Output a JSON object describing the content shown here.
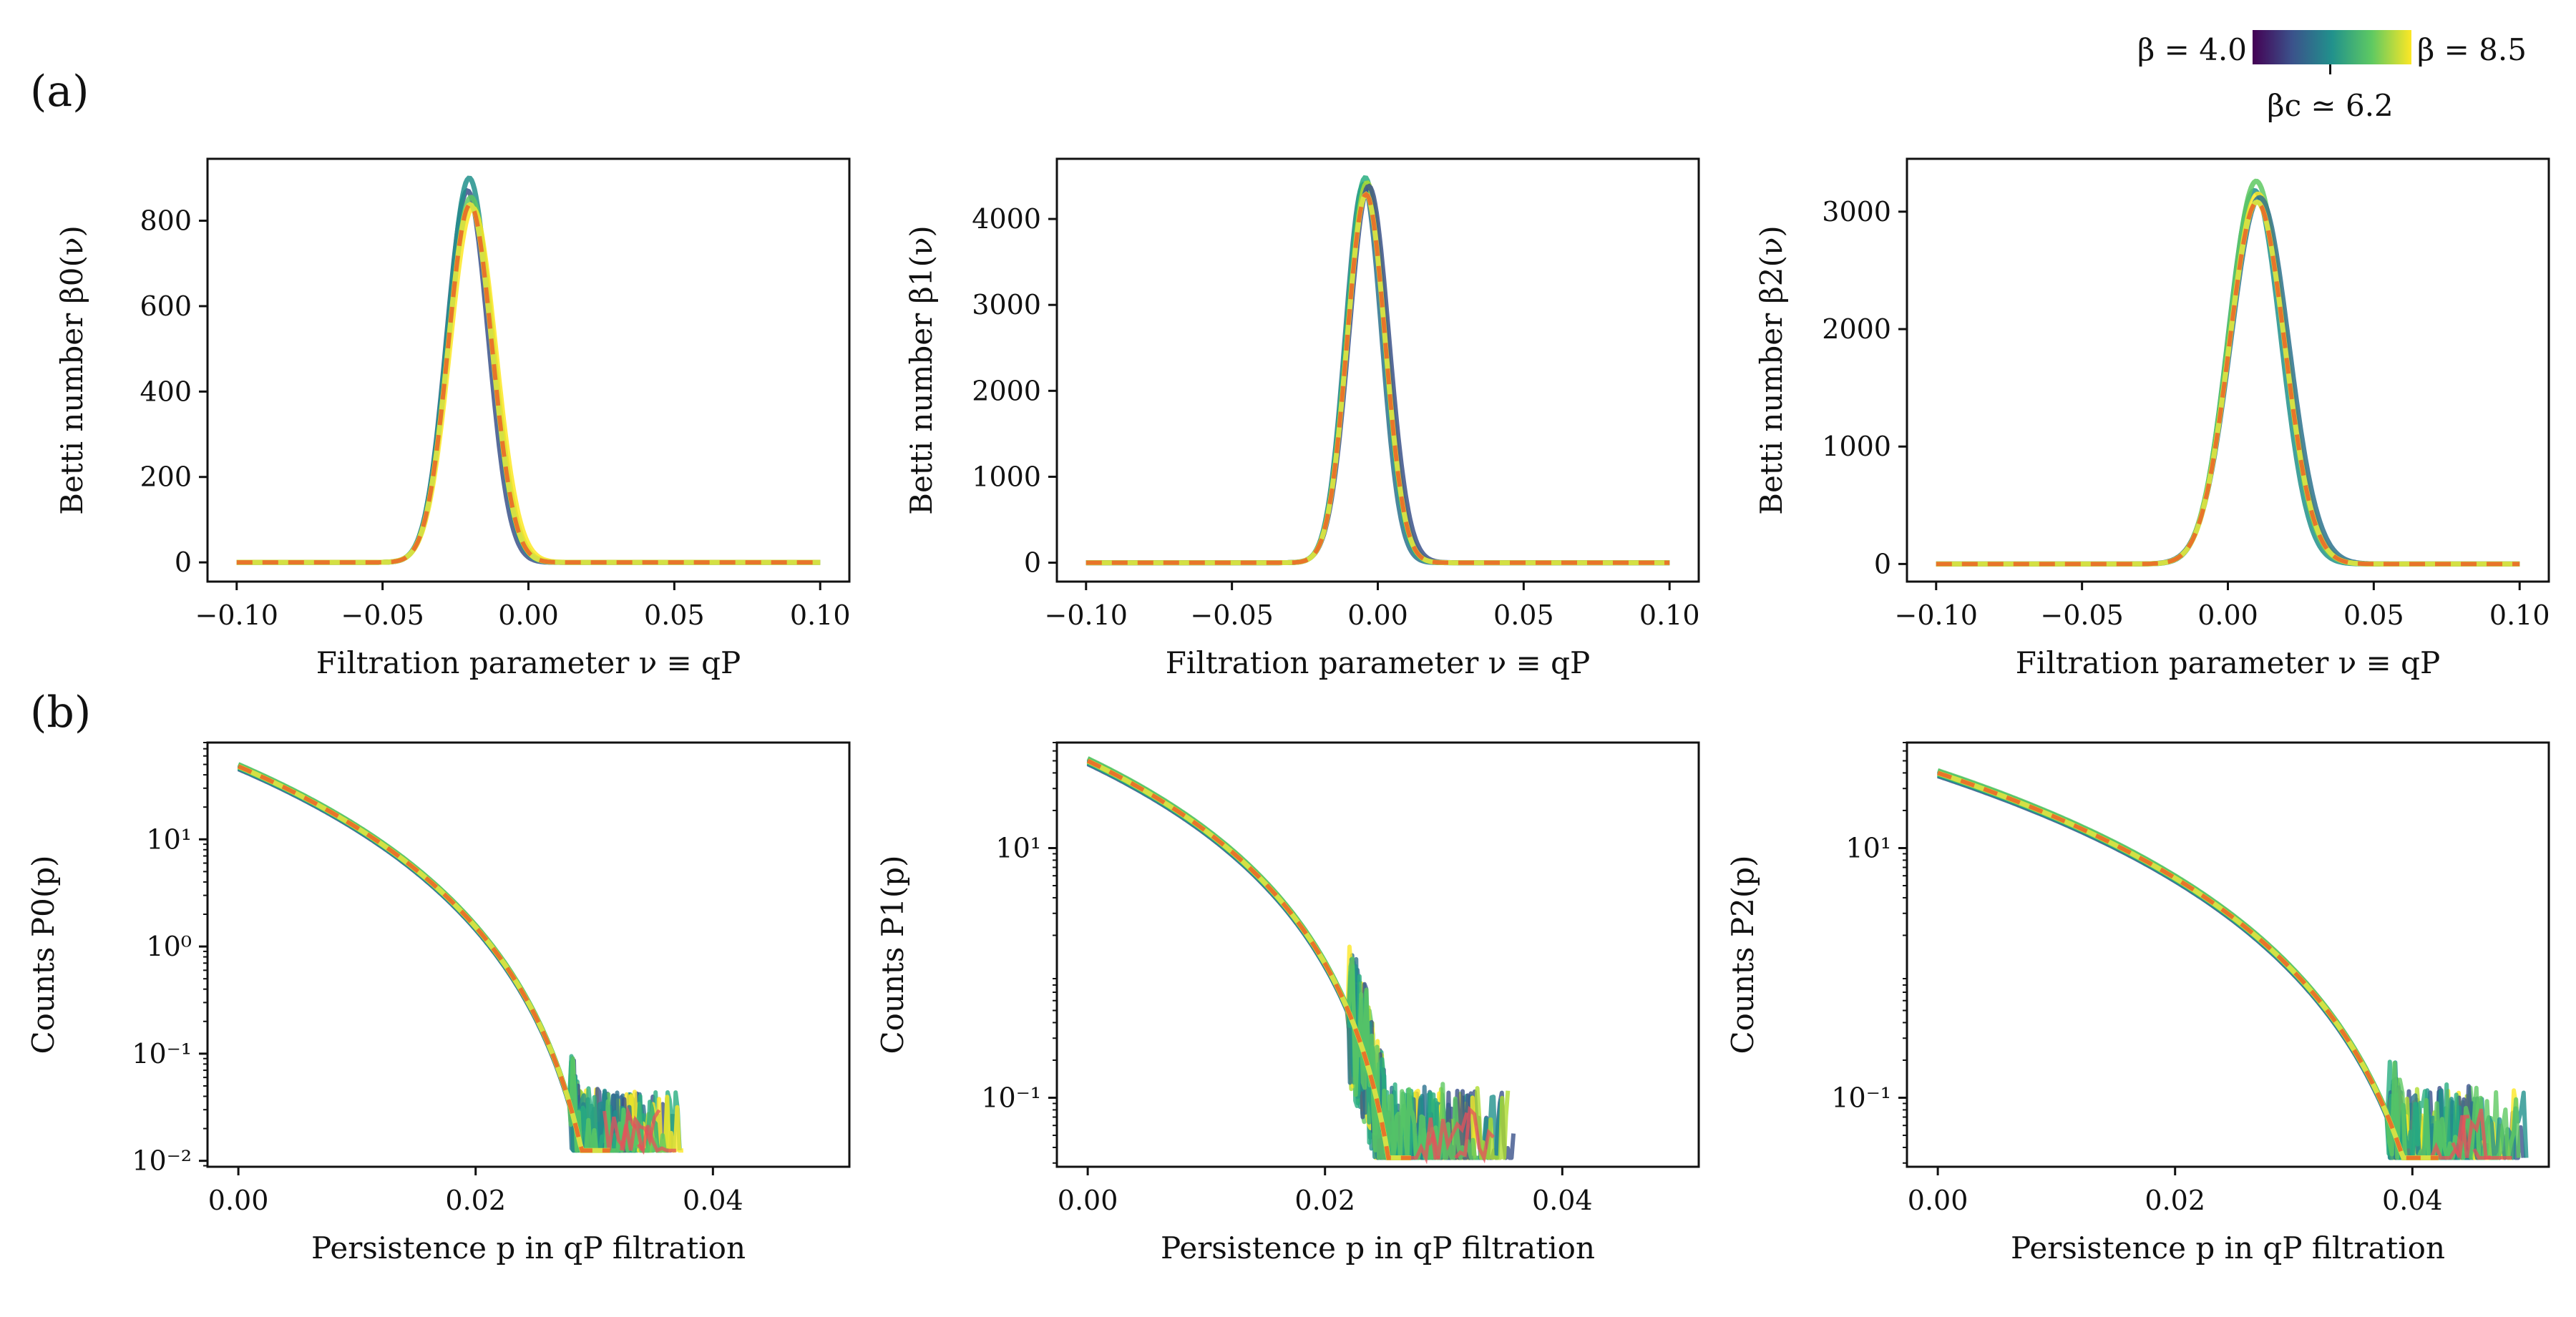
{
  "figure": {
    "panel_a_label": "(a)",
    "panel_b_label": "(b)",
    "colorbar": {
      "cmap": "viridis",
      "colors": [
        "#440154",
        "#3b528b",
        "#21918c",
        "#5ec962",
        "#fde725"
      ],
      "min_label": "β = 4.0",
      "max_label": "β = 8.5",
      "crit_label": "βc ≃ 6.2",
      "beta_min": 4.0,
      "beta_max": 8.5,
      "beta_c": 6.2
    },
    "mean_line": {
      "dash_color": "#e8752a",
      "dash_color2": "#d4e044"
    }
  },
  "chart_data": [
    {
      "type": "line",
      "panel": "a",
      "ylabel": "Betti number β0(ν)",
      "xlabel": "Filtration parameter ν ≡ qP",
      "xlim": [
        -0.11,
        0.11
      ],
      "ylim": [
        -45,
        945
      ],
      "yscale": "linear",
      "xticks": [
        -0.1,
        -0.05,
        0.0,
        0.05,
        0.1
      ],
      "xticklabels": [
        "−0.10",
        "−0.05",
        "0.00",
        "0.05",
        "0.10"
      ],
      "yticks": [
        0,
        200,
        400,
        600,
        800
      ],
      "yticklabels": [
        "0",
        "200",
        "400",
        "600",
        "800"
      ],
      "peak": {
        "x": -0.02,
        "y": 900,
        "width": 0.0075,
        "range_x": [
          -0.1,
          0.1
        ]
      },
      "bands": [
        870,
        900,
        855,
        830
      ]
    },
    {
      "type": "line",
      "panel": "a",
      "ylabel": "Betti number β1(ν)",
      "xlabel": "Filtration parameter ν ≡ qP",
      "xlim": [
        -0.11,
        0.11
      ],
      "ylim": [
        -220,
        4700
      ],
      "yscale": "linear",
      "xticks": [
        -0.1,
        -0.05,
        0.0,
        0.05,
        0.1
      ],
      "xticklabels": [
        "−0.10",
        "−0.05",
        "0.00",
        "0.05",
        "0.10"
      ],
      "yticks": [
        0,
        1000,
        2000,
        3000,
        4000
      ],
      "yticklabels": [
        "0",
        "1000",
        "2000",
        "3000",
        "4000"
      ],
      "peak": {
        "x": -0.004,
        "y": 4450,
        "width": 0.0065,
        "range_x": [
          -0.1,
          0.1
        ]
      },
      "bands": [
        4400,
        4480,
        4420,
        4380
      ]
    },
    {
      "type": "line",
      "panel": "a",
      "ylabel": "Betti number β2(ν)",
      "xlabel": "Filtration parameter ν ≡ qP",
      "xlim": [
        -0.11,
        0.11
      ],
      "ylim": [
        -150,
        3450
      ],
      "yscale": "linear",
      "xticks": [
        -0.1,
        -0.05,
        0.0,
        0.05,
        0.1
      ],
      "xticklabels": [
        "−0.10",
        "−0.05",
        "0.00",
        "0.05",
        "0.10"
      ],
      "yticks": [
        0,
        1000,
        2000,
        3000
      ],
      "yticklabels": [
        "0",
        "1000",
        "2000",
        "3000"
      ],
      "peak": {
        "x": 0.01,
        "y": 3200,
        "width": 0.0095,
        "range_x": [
          -0.1,
          0.1
        ]
      },
      "bands": [
        3180,
        3260,
        3150,
        3120
      ]
    },
    {
      "type": "line",
      "panel": "b",
      "ylabel": "Counts P0(p)",
      "xlabel": "Persistence p in qP filtration",
      "xlim": [
        -0.0026,
        0.0515
      ],
      "ylim": [
        0.0088,
        80
      ],
      "yscale": "log",
      "xticks": [
        0.0,
        0.02,
        0.04
      ],
      "xticklabels": [
        "0.00",
        "0.02",
        "0.04"
      ],
      "yticks": [
        0.01,
        0.1,
        1,
        10
      ],
      "yticklabels": [
        "10⁻²",
        "10⁻¹",
        "10⁰",
        "10¹"
      ],
      "curve": {
        "y0": 48,
        "x_end": 0.032,
        "shape": 2.2
      },
      "tail": {
        "x_start": 0.028,
        "x_max": 0.0375,
        "floor": 0.0125
      }
    },
    {
      "type": "line",
      "panel": "b",
      "ylabel": "Counts P1(p)",
      "xlabel": "Persistence p in qP filtration",
      "xlim": [
        -0.0026,
        0.0515
      ],
      "ylim": [
        0.028,
        70
      ],
      "yscale": "log",
      "xticks": [
        0.0,
        0.02,
        0.04
      ],
      "xticklabels": [
        "0.00",
        "0.02",
        "0.04"
      ],
      "yticks": [
        0.1,
        10
      ],
      "yticklabels": [
        "10⁻¹",
        "10¹"
      ],
      "curve": {
        "y0": 50,
        "x_end": 0.0275,
        "shape": 1.8
      },
      "tail": {
        "x_start": 0.022,
        "x_max": 0.037,
        "floor": 0.033
      }
    },
    {
      "type": "line",
      "panel": "b",
      "ylabel": "Counts P2(p)",
      "xlabel": "Persistence p in qP filtration",
      "xlim": [
        -0.0026,
        0.0515
      ],
      "ylim": [
        0.028,
        70
      ],
      "yscale": "log",
      "xticks": [
        0.0,
        0.02,
        0.04
      ],
      "xticklabels": [
        "0.00",
        "0.02",
        "0.04"
      ],
      "yticks": [
        0.1,
        10
      ],
      "yticklabels": [
        "10⁻¹",
        "10¹"
      ],
      "curve": {
        "y0": 40,
        "x_end": 0.044,
        "shape": 2.0
      },
      "tail": {
        "x_start": 0.038,
        "x_max": 0.05,
        "floor": 0.033
      }
    }
  ]
}
